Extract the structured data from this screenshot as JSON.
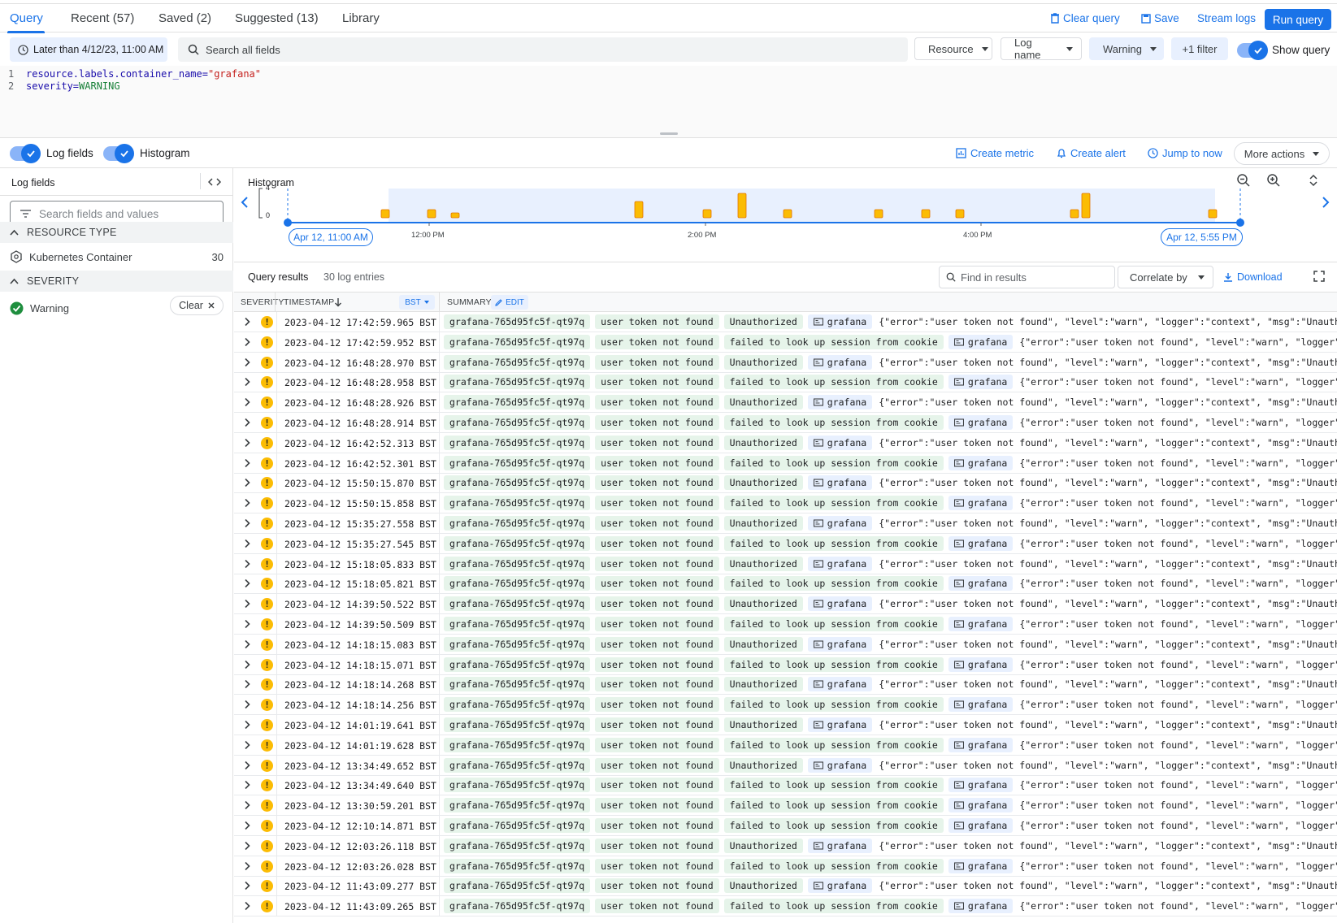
{
  "tabs": [
    {
      "label": "Query"
    },
    {
      "label": "Recent (57)"
    },
    {
      "label": "Saved (2)"
    },
    {
      "label": "Suggested (13)"
    },
    {
      "label": "Library"
    }
  ],
  "top_actions": {
    "clear_query": "Clear query",
    "save": "Save",
    "stream_logs": "Stream logs",
    "run_query": "Run query"
  },
  "filters": {
    "time_range": "Later than 4/12/23, 11:00 AM",
    "search_placeholder": "Search all fields",
    "resource": "Resource",
    "log_name": "Log name",
    "severity": "Warning",
    "more_filter": "+1 filter",
    "show_query": "Show query"
  },
  "editor": {
    "lines": [
      {
        "num": "1",
        "key": "resource.labels.container_name=",
        "value": "\"grafana\""
      },
      {
        "num": "2",
        "key": "severity=",
        "value": "WARNING"
      }
    ]
  },
  "view_bar": {
    "log_fields": "Log fields",
    "histogram": "Histogram",
    "create_metric": "Create metric",
    "create_alert": "Create alert",
    "jump_to_now": "Jump to now",
    "more_actions": "More actions"
  },
  "log_fields_panel": {
    "title": "Log fields",
    "search_placeholder": "Search fields and values",
    "resource_type_header": "RESOURCE TYPE",
    "resource_type_value": "Kubernetes Container",
    "resource_type_count": "30",
    "severity_header": "SEVERITY",
    "severity_value": "Warning",
    "clear_label": "Clear"
  },
  "histogram": {
    "title": "Histogram",
    "y_max": "4",
    "y_min": "0",
    "start_label": "Apr 12, 11:00 AM",
    "end_label": "Apr 12, 5:55 PM",
    "ticks": [
      "12:00 PM",
      "2:00 PM",
      "4:00 PM"
    ],
    "bars": [
      1,
      1,
      0.5,
      2,
      1,
      3,
      1,
      1,
      1,
      1,
      1,
      3,
      1
    ],
    "colors": {
      "bar": "#fbbc04",
      "bar_border": "#e37400",
      "range": "#e8f0fe",
      "axis": "#1a73e8"
    }
  },
  "results": {
    "title": "Query results",
    "count": "30 log entries",
    "find_placeholder": "Find in results",
    "correlate_by": "Correlate by",
    "download": "Download"
  },
  "table_header": {
    "severity": "SEVERITY",
    "timestamp": "TIMESTAMP",
    "tz": "BST",
    "summary": "SUMMARY",
    "edit": "EDIT"
  },
  "rows": [
    {
      "ts": "2023-04-12 17:42:59.965 BST",
      "pod": "grafana-765d95fc5f-qt97q",
      "msg": "user token not found",
      "reason": "Unauthorized",
      "app": "grafana",
      "json": "{\"error\":\"user token not found\", \"level\":\"warn\", \"logger\":\"context\", \"msg\":\"Unauthor…"
    },
    {
      "ts": "2023-04-12 17:42:59.952 BST",
      "pod": "grafana-765d95fc5f-qt97q",
      "msg": "user token not found",
      "reason": "failed to look up session from cookie",
      "app": "grafana",
      "json": "{\"error\":\"user token not found\", \"level\":\"warn\", \"logger\":\"…"
    },
    {
      "ts": "2023-04-12 16:48:28.970 BST",
      "pod": "grafana-765d95fc5f-qt97q",
      "msg": "user token not found",
      "reason": "Unauthorized",
      "app": "grafana",
      "json": "{\"error\":\"user token not found\", \"level\":\"warn\", \"logger\":\"context\", \"msg\":\"Unauthor…"
    },
    {
      "ts": "2023-04-12 16:48:28.958 BST",
      "pod": "grafana-765d95fc5f-qt97q",
      "msg": "user token not found",
      "reason": "failed to look up session from cookie",
      "app": "grafana",
      "json": "{\"error\":\"user token not found\", \"level\":\"warn\", \"logger\":\"…"
    },
    {
      "ts": "2023-04-12 16:48:28.926 BST",
      "pod": "grafana-765d95fc5f-qt97q",
      "msg": "user token not found",
      "reason": "Unauthorized",
      "app": "grafana",
      "json": "{\"error\":\"user token not found\", \"level\":\"warn\", \"logger\":\"context\", \"msg\":\"Unauthor…"
    },
    {
      "ts": "2023-04-12 16:48:28.914 BST",
      "pod": "grafana-765d95fc5f-qt97q",
      "msg": "user token not found",
      "reason": "failed to look up session from cookie",
      "app": "grafana",
      "json": "{\"error\":\"user token not found\", \"level\":\"warn\", \"logger\":\"…"
    },
    {
      "ts": "2023-04-12 16:42:52.313 BST",
      "pod": "grafana-765d95fc5f-qt97q",
      "msg": "user token not found",
      "reason": "Unauthorized",
      "app": "grafana",
      "json": "{\"error\":\"user token not found\", \"level\":\"warn\", \"logger\":\"context\", \"msg\":\"Unauthor…"
    },
    {
      "ts": "2023-04-12 16:42:52.301 BST",
      "pod": "grafana-765d95fc5f-qt97q",
      "msg": "user token not found",
      "reason": "failed to look up session from cookie",
      "app": "grafana",
      "json": "{\"error\":\"user token not found\", \"level\":\"warn\", \"logger\":\"…"
    },
    {
      "ts": "2023-04-12 15:50:15.870 BST",
      "pod": "grafana-765d95fc5f-qt97q",
      "msg": "user token not found",
      "reason": "Unauthorized",
      "app": "grafana",
      "json": "{\"error\":\"user token not found\", \"level\":\"warn\", \"logger\":\"context\", \"msg\":\"Unauthor…"
    },
    {
      "ts": "2023-04-12 15:50:15.858 BST",
      "pod": "grafana-765d95fc5f-qt97q",
      "msg": "user token not found",
      "reason": "failed to look up session from cookie",
      "app": "grafana",
      "json": "{\"error\":\"user token not found\", \"level\":\"warn\", \"logger\":\"…"
    },
    {
      "ts": "2023-04-12 15:35:27.558 BST",
      "pod": "grafana-765d95fc5f-qt97q",
      "msg": "user token not found",
      "reason": "Unauthorized",
      "app": "grafana",
      "json": "{\"error\":\"user token not found\", \"level\":\"warn\", \"logger\":\"context\", \"msg\":\"Unauthor…"
    },
    {
      "ts": "2023-04-12 15:35:27.545 BST",
      "pod": "grafana-765d95fc5f-qt97q",
      "msg": "user token not found",
      "reason": "failed to look up session from cookie",
      "app": "grafana",
      "json": "{\"error\":\"user token not found\", \"level\":\"warn\", \"logger\":\"…"
    },
    {
      "ts": "2023-04-12 15:18:05.833 BST",
      "pod": "grafana-765d95fc5f-qt97q",
      "msg": "user token not found",
      "reason": "Unauthorized",
      "app": "grafana",
      "json": "{\"error\":\"user token not found\", \"level\":\"warn\", \"logger\":\"context\", \"msg\":\"Unauthor…"
    },
    {
      "ts": "2023-04-12 15:18:05.821 BST",
      "pod": "grafana-765d95fc5f-qt97q",
      "msg": "user token not found",
      "reason": "failed to look up session from cookie",
      "app": "grafana",
      "json": "{\"error\":\"user token not found\", \"level\":\"warn\", \"logger\":\"…"
    },
    {
      "ts": "2023-04-12 14:39:50.522 BST",
      "pod": "grafana-765d95fc5f-qt97q",
      "msg": "user token not found",
      "reason": "Unauthorized",
      "app": "grafana",
      "json": "{\"error\":\"user token not found\", \"level\":\"warn\", \"logger\":\"context\", \"msg\":\"Unauthor…"
    },
    {
      "ts": "2023-04-12 14:39:50.509 BST",
      "pod": "grafana-765d95fc5f-qt97q",
      "msg": "user token not found",
      "reason": "failed to look up session from cookie",
      "app": "grafana",
      "json": "{\"error\":\"user token not found\", \"level\":\"warn\", \"logger\":\"…"
    },
    {
      "ts": "2023-04-12 14:18:15.083 BST",
      "pod": "grafana-765d95fc5f-qt97q",
      "msg": "user token not found",
      "reason": "Unauthorized",
      "app": "grafana",
      "json": "{\"error\":\"user token not found\", \"level\":\"warn\", \"logger\":\"context\", \"msg\":\"Unauthor…"
    },
    {
      "ts": "2023-04-12 14:18:15.071 BST",
      "pod": "grafana-765d95fc5f-qt97q",
      "msg": "user token not found",
      "reason": "failed to look up session from cookie",
      "app": "grafana",
      "json": "{\"error\":\"user token not found\", \"level\":\"warn\", \"logger\":\"…"
    },
    {
      "ts": "2023-04-12 14:18:14.268 BST",
      "pod": "grafana-765d95fc5f-qt97q",
      "msg": "user token not found",
      "reason": "Unauthorized",
      "app": "grafana",
      "json": "{\"error\":\"user token not found\", \"level\":\"warn\", \"logger\":\"context\", \"msg\":\"Unauthor…"
    },
    {
      "ts": "2023-04-12 14:18:14.256 BST",
      "pod": "grafana-765d95fc5f-qt97q",
      "msg": "user token not found",
      "reason": "failed to look up session from cookie",
      "app": "grafana",
      "json": "{\"error\":\"user token not found\", \"level\":\"warn\", \"logger\":\"…"
    },
    {
      "ts": "2023-04-12 14:01:19.641 BST",
      "pod": "grafana-765d95fc5f-qt97q",
      "msg": "user token not found",
      "reason": "Unauthorized",
      "app": "grafana",
      "json": "{\"error\":\"user token not found\", \"level\":\"warn\", \"logger\":\"context\", \"msg\":\"Unauthor…"
    },
    {
      "ts": "2023-04-12 14:01:19.628 BST",
      "pod": "grafana-765d95fc5f-qt97q",
      "msg": "user token not found",
      "reason": "failed to look up session from cookie",
      "app": "grafana",
      "json": "{\"error\":\"user token not found\", \"level\":\"warn\", \"logger\":\"…"
    },
    {
      "ts": "2023-04-12 13:34:49.652 BST",
      "pod": "grafana-765d95fc5f-qt97q",
      "msg": "user token not found",
      "reason": "Unauthorized",
      "app": "grafana",
      "json": "{\"error\":\"user token not found\", \"level\":\"warn\", \"logger\":\"context\", \"msg\":\"Unauthor…"
    },
    {
      "ts": "2023-04-12 13:34:49.640 BST",
      "pod": "grafana-765d95fc5f-qt97q",
      "msg": "user token not found",
      "reason": "failed to look up session from cookie",
      "app": "grafana",
      "json": "{\"error\":\"user token not found\", \"level\":\"warn\", \"logger\":\"…"
    },
    {
      "ts": "2023-04-12 13:30:59.201 BST",
      "pod": "grafana-765d95fc5f-qt97q",
      "msg": "user token not found",
      "reason": "failed to look up session from cookie",
      "app": "grafana",
      "json": "{\"error\":\"user token not found\", \"level\":\"warn\", \"logger\":\"…"
    },
    {
      "ts": "2023-04-12 12:10:14.871 BST",
      "pod": "grafana-765d95fc5f-qt97q",
      "msg": "user token not found",
      "reason": "failed to look up session from cookie",
      "app": "grafana",
      "json": "{\"error\":\"user token not found\", \"level\":\"warn\", \"logger\":\"…"
    },
    {
      "ts": "2023-04-12 12:03:26.118 BST",
      "pod": "grafana-765d95fc5f-qt97q",
      "msg": "user token not found",
      "reason": "Unauthorized",
      "app": "grafana",
      "json": "{\"error\":\"user token not found\", \"level\":\"warn\", \"logger\":\"context\", \"msg\":\"Unauthor…"
    },
    {
      "ts": "2023-04-12 12:03:26.028 BST",
      "pod": "grafana-765d95fc5f-qt97q",
      "msg": "user token not found",
      "reason": "failed to look up session from cookie",
      "app": "grafana",
      "json": "{\"error\":\"user token not found\", \"level\":\"warn\", \"logger\":\"…"
    },
    {
      "ts": "2023-04-12 11:43:09.277 BST",
      "pod": "grafana-765d95fc5f-qt97q",
      "msg": "user token not found",
      "reason": "Unauthorized",
      "app": "grafana",
      "json": "{\"error\":\"user token not found\", \"level\":\"warn\", \"logger\":\"context\", \"msg\":\"Unauthor…"
    },
    {
      "ts": "2023-04-12 11:43:09.265 BST",
      "pod": "grafana-765d95fc5f-qt97q",
      "msg": "user token not found",
      "reason": "failed to look up session from cookie",
      "app": "grafana",
      "json": "{\"error\":\"user token not found\", \"level\":\"warn\", \"logger\":\"…"
    }
  ]
}
